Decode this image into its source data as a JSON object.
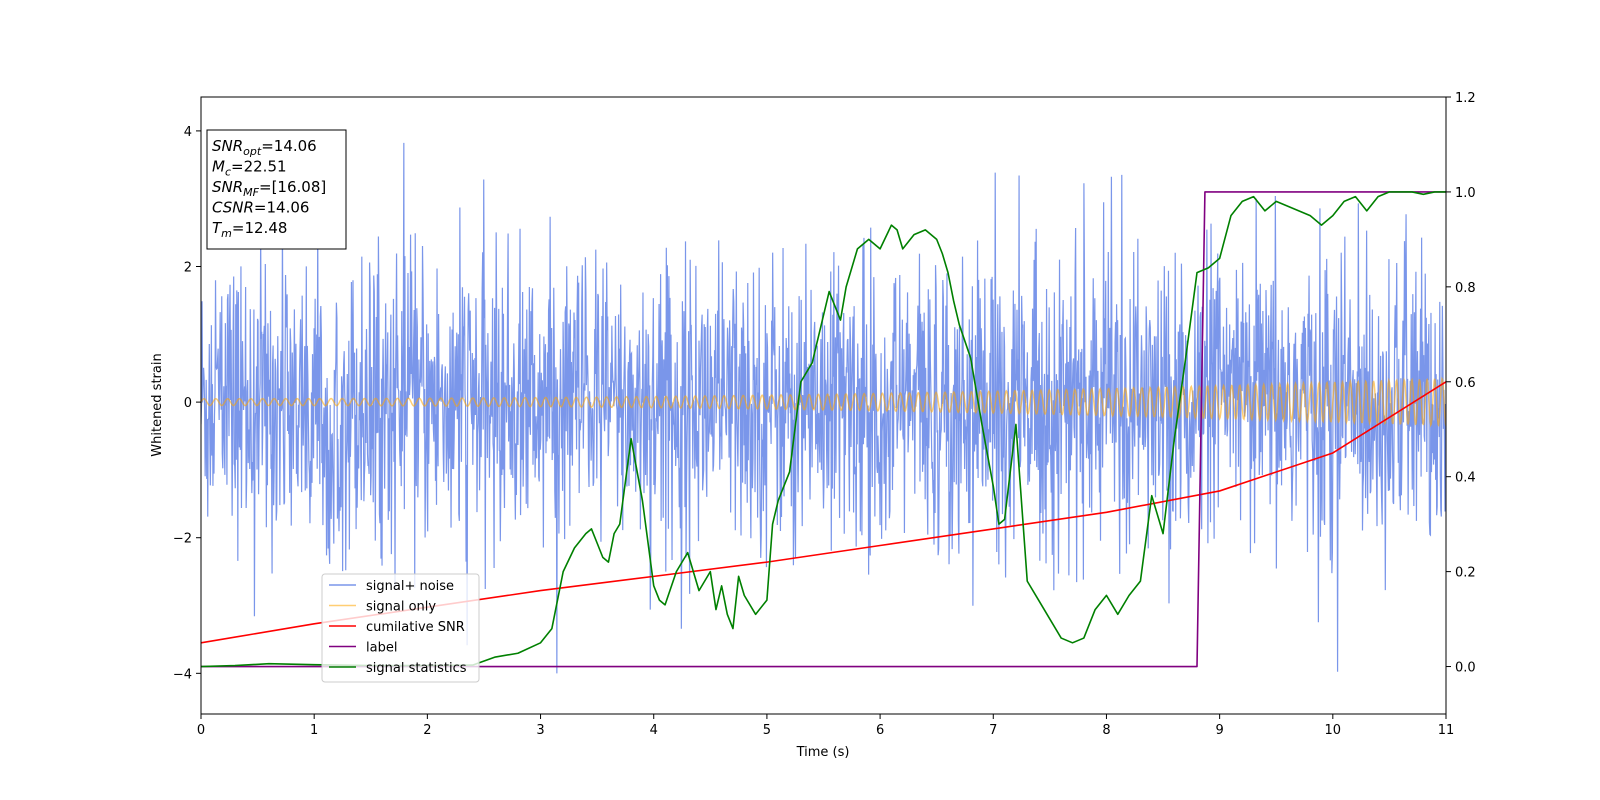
{
  "chart_data": {
    "type": "line",
    "xlabel": "Time (s)",
    "ylabel": "Whitened strain",
    "xlim": [
      0,
      11
    ],
    "ylim": [
      -4.6,
      4.5
    ],
    "y2lim": [
      -0.1,
      1.2
    ],
    "grid": false,
    "legend_position": "lower-left",
    "x_ticks": [
      "0",
      "1",
      "2",
      "3",
      "4",
      "5",
      "6",
      "7",
      "8",
      "9",
      "10",
      "11"
    ],
    "y_ticks": [
      "−4",
      "−2",
      "0",
      "2",
      "4"
    ],
    "y2_ticks": [
      "0.0",
      "0.2",
      "0.4",
      "0.6",
      "0.8",
      "1.0",
      "1.2"
    ],
    "x_tick_values": [
      0,
      1,
      2,
      3,
      4,
      5,
      6,
      7,
      8,
      9,
      10,
      11
    ],
    "y_tick_values": [
      -4,
      -2,
      0,
      2,
      4
    ],
    "y2_tick_values": [
      0,
      0.2,
      0.4,
      0.6,
      0.8,
      1.0,
      1.2
    ],
    "annotation": {
      "lines": [
        {
          "sym": "SNR",
          "sub": "opt",
          "val": "=14.06"
        },
        {
          "sym": "M",
          "sub": "c",
          "val": "=22.51"
        },
        {
          "sym": "SNR",
          "sub": "MF",
          "val": "=[16.08]"
        },
        {
          "sym": "CSNR",
          "sub": "",
          "val": "=14.06"
        },
        {
          "sym": "T",
          "sub": "m",
          "val": "=12.48"
        }
      ]
    },
    "series": [
      {
        "name": "signal+ noise",
        "color": "#4169e1",
        "axis": "left",
        "kind": "noise",
        "amplitude_range": [
          -4.0,
          4.0
        ]
      },
      {
        "name": "signal only",
        "color": "#ffa500",
        "axis": "left",
        "kind": "chirp",
        "start_amplitude": 0.05,
        "end_amplitude": 0.35
      },
      {
        "name": "cumilative SNR",
        "color": "#ff0000",
        "axis": "right",
        "x": [
          0,
          1,
          2,
          3,
          4,
          5,
          6,
          7,
          8,
          9,
          10,
          11
        ],
        "values": [
          0.05,
          0.09,
          0.125,
          0.16,
          0.19,
          0.22,
          0.255,
          0.29,
          0.325,
          0.37,
          0.45,
          0.6
        ]
      },
      {
        "name": "label",
        "color": "#800080",
        "axis": "right",
        "x": [
          0,
          8.8,
          8.87,
          11
        ],
        "values": [
          0,
          0,
          1,
          1
        ]
      },
      {
        "name": "signal statistics",
        "color": "#008000",
        "axis": "right",
        "x": [
          0,
          0.3,
          0.6,
          1,
          1.5,
          2,
          2.4,
          2.6,
          2.8,
          3,
          3.1,
          3.2,
          3.3,
          3.4,
          3.45,
          3.5,
          3.55,
          3.6,
          3.65,
          3.7,
          3.8,
          3.9,
          4.0,
          4.05,
          4.1,
          4.2,
          4.3,
          4.4,
          4.5,
          4.55,
          4.6,
          4.65,
          4.7,
          4.75,
          4.8,
          4.9,
          5.0,
          5.05,
          5.1,
          5.2,
          5.3,
          5.4,
          5.5,
          5.55,
          5.6,
          5.65,
          5.7,
          5.8,
          5.9,
          6.0,
          6.1,
          6.15,
          6.2,
          6.3,
          6.4,
          6.5,
          6.55,
          6.6,
          6.65,
          6.7,
          6.8,
          6.9,
          7.0,
          7.05,
          7.1,
          7.2,
          7.3,
          7.4,
          7.5,
          7.6,
          7.7,
          7.8,
          7.9,
          8.0,
          8.1,
          8.2,
          8.3,
          8.4,
          8.5,
          8.6,
          8.7,
          8.8,
          8.9,
          9.0,
          9.1,
          9.2,
          9.3,
          9.4,
          9.5,
          9.6,
          9.7,
          9.8,
          9.9,
          10.0,
          10.1,
          10.2,
          10.3,
          10.4,
          10.5,
          10.6,
          10.7,
          10.8,
          10.9,
          11.0
        ],
        "values": [
          0,
          0.002,
          0.006,
          0.004,
          0.002,
          0.002,
          0.003,
          0.02,
          0.028,
          0.05,
          0.08,
          0.2,
          0.25,
          0.28,
          0.29,
          0.26,
          0.23,
          0.22,
          0.28,
          0.3,
          0.48,
          0.35,
          0.17,
          0.14,
          0.13,
          0.2,
          0.24,
          0.16,
          0.2,
          0.12,
          0.17,
          0.11,
          0.08,
          0.19,
          0.15,
          0.11,
          0.14,
          0.3,
          0.35,
          0.41,
          0.6,
          0.64,
          0.74,
          0.79,
          0.76,
          0.73,
          0.8,
          0.88,
          0.9,
          0.88,
          0.93,
          0.92,
          0.88,
          0.91,
          0.92,
          0.9,
          0.87,
          0.83,
          0.77,
          0.72,
          0.65,
          0.51,
          0.38,
          0.3,
          0.31,
          0.51,
          0.18,
          0.14,
          0.1,
          0.06,
          0.05,
          0.06,
          0.12,
          0.15,
          0.11,
          0.15,
          0.18,
          0.36,
          0.28,
          0.48,
          0.65,
          0.83,
          0.84,
          0.86,
          0.95,
          0.98,
          0.99,
          0.96,
          0.98,
          0.97,
          0.96,
          0.95,
          0.93,
          0.95,
          0.98,
          0.99,
          0.96,
          0.99,
          1.0,
          1.0,
          1.0,
          0.995,
          1.0,
          1.0
        ]
      }
    ]
  }
}
